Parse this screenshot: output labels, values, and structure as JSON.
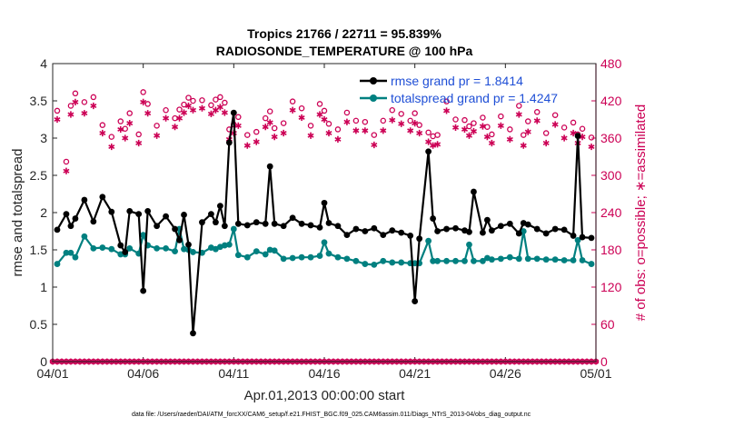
{
  "chart_data": {
    "type": "line",
    "title": "Tropics 21766 / 22711 = 95.839%",
    "subtitle": "RADIOSONDE_TEMPERATURE @ 100 hPa",
    "xlabel": "Apr.01,2013 00:00:00 start",
    "ylabel": "rmse and totalspread",
    "ylabel_right": "# of obs: o=possible; ∗=assimilated",
    "ylim": [
      0,
      4
    ],
    "ylim_right": [
      0,
      480
    ],
    "xlim": [
      0,
      30
    ],
    "yticks": [
      "0",
      "0.5",
      "1",
      "1.5",
      "2",
      "2.5",
      "3",
      "3.5",
      "4"
    ],
    "yticks_right": [
      "0",
      "60",
      "120",
      "180",
      "240",
      "300",
      "360",
      "420",
      "480"
    ],
    "xticks": [
      {
        "pos": 0,
        "label": "04/01"
      },
      {
        "pos": 5,
        "label": "04/06"
      },
      {
        "pos": 10,
        "label": "04/11"
      },
      {
        "pos": 15,
        "label": "04/16"
      },
      {
        "pos": 20,
        "label": "04/21"
      },
      {
        "pos": 25,
        "label": "04/26"
      },
      {
        "pos": 30,
        "label": "05/01"
      }
    ],
    "legend": [
      {
        "name": "rmse grand pr = 1.8414",
        "color": "#000000"
      },
      {
        "name": "totalspread grand pr = 1.4247",
        "color": "#008080"
      }
    ],
    "series": [
      {
        "name": "rmse",
        "color": "#000000",
        "x": [
          0.25,
          0.75,
          1.0,
          1.25,
          1.75,
          2.25,
          2.75,
          3.25,
          3.75,
          4.0,
          4.25,
          4.75,
          5.0,
          5.25,
          5.75,
          6.25,
          6.75,
          7.0,
          7.25,
          7.5,
          7.75,
          8.25,
          8.75,
          9.0,
          9.25,
          9.5,
          9.75,
          10.0,
          10.25,
          10.75,
          11.25,
          11.75,
          12.0,
          12.25,
          12.75,
          13.25,
          13.75,
          14.25,
          14.75,
          15.0,
          15.25,
          15.75,
          16.25,
          16.75,
          17.25,
          17.75,
          18.25,
          18.75,
          19.25,
          19.75,
          20.0,
          20.25,
          20.75,
          21.0,
          21.25,
          21.75,
          22.25,
          22.75,
          23.0,
          23.25,
          23.75,
          24.0,
          24.25,
          24.75,
          25.25,
          25.75,
          26.0,
          26.25,
          26.75,
          27.25,
          27.75,
          28.25,
          28.75,
          29.0,
          29.25,
          29.75
        ],
        "values": [
          1.77,
          1.98,
          1.82,
          1.92,
          2.17,
          1.88,
          2.21,
          2.01,
          1.56,
          1.47,
          2.02,
          1.98,
          0.95,
          2.02,
          1.82,
          1.95,
          1.78,
          1.63,
          1.97,
          1.57,
          0.38,
          1.87,
          1.98,
          1.87,
          2.09,
          1.82,
          2.94,
          3.34,
          1.85,
          1.83,
          1.87,
          1.85,
          2.62,
          1.85,
          1.82,
          1.93,
          1.85,
          1.83,
          1.8,
          2.13,
          1.86,
          1.82,
          1.7,
          1.78,
          1.75,
          1.79,
          1.7,
          1.76,
          1.73,
          1.69,
          0.81,
          1.65,
          2.82,
          1.92,
          1.75,
          1.78,
          1.79,
          1.76,
          1.74,
          2.28,
          1.73,
          1.9,
          1.76,
          1.82,
          1.85,
          1.72,
          1.86,
          1.84,
          1.78,
          1.72,
          1.78,
          1.77,
          1.69,
          3.03,
          1.67,
          1.66
        ]
      },
      {
        "name": "totalspread",
        "color": "#008080",
        "x": [
          0.25,
          0.75,
          1.0,
          1.25,
          1.75,
          2.25,
          2.75,
          3.25,
          3.75,
          4.0,
          4.25,
          4.75,
          5.0,
          5.25,
          5.75,
          6.25,
          6.75,
          7.0,
          7.25,
          7.5,
          7.75,
          8.25,
          8.75,
          9.0,
          9.25,
          9.5,
          9.75,
          10.0,
          10.25,
          10.75,
          11.25,
          11.75,
          12.0,
          12.25,
          12.75,
          13.25,
          13.75,
          14.25,
          14.75,
          15.0,
          15.25,
          15.75,
          16.25,
          16.75,
          17.25,
          17.75,
          18.25,
          18.75,
          19.25,
          19.75,
          20.0,
          20.25,
          20.75,
          21.0,
          21.25,
          21.75,
          22.25,
          22.75,
          23.0,
          23.25,
          23.75,
          24.0,
          24.25,
          24.75,
          25.25,
          25.75,
          26.0,
          26.25,
          26.75,
          27.25,
          27.75,
          28.25,
          28.75,
          29.0,
          29.25,
          29.75
        ],
        "values": [
          1.31,
          1.46,
          1.46,
          1.4,
          1.68,
          1.52,
          1.53,
          1.51,
          1.44,
          1.44,
          1.52,
          1.45,
          1.7,
          1.56,
          1.52,
          1.52,
          1.48,
          1.78,
          1.51,
          1.5,
          1.47,
          1.46,
          1.53,
          1.51,
          1.54,
          1.56,
          1.57,
          1.78,
          1.43,
          1.4,
          1.48,
          1.44,
          1.5,
          1.49,
          1.38,
          1.39,
          1.4,
          1.4,
          1.42,
          1.6,
          1.45,
          1.4,
          1.38,
          1.35,
          1.31,
          1.3,
          1.35,
          1.33,
          1.33,
          1.32,
          1.32,
          1.32,
          1.62,
          1.35,
          1.35,
          1.35,
          1.35,
          1.35,
          1.57,
          1.35,
          1.35,
          1.39,
          1.37,
          1.38,
          1.4,
          1.38,
          1.75,
          1.38,
          1.38,
          1.37,
          1.37,
          1.36,
          1.36,
          1.63,
          1.36,
          1.31
        ]
      }
    ],
    "obs_possible": {
      "x": [
        0.25,
        0.75,
        1.0,
        1.25,
        1.75,
        2.25,
        2.75,
        3.25,
        3.75,
        4.0,
        4.25,
        4.75,
        5.0,
        5.25,
        5.75,
        6.25,
        6.75,
        7.0,
        7.25,
        7.5,
        7.75,
        8.25,
        8.75,
        9.0,
        9.25,
        9.5,
        9.75,
        10.0,
        10.25,
        10.75,
        11.25,
        11.75,
        12.0,
        12.25,
        12.75,
        13.25,
        13.75,
        14.25,
        14.75,
        15.0,
        15.25,
        15.75,
        16.25,
        16.75,
        17.25,
        17.75,
        18.25,
        18.75,
        19.25,
        19.75,
        20.0,
        20.25,
        20.75,
        21.0,
        21.25,
        21.75,
        22.25,
        22.75,
        23.0,
        23.25,
        23.75,
        24.0,
        24.25,
        24.75,
        25.25,
        25.75,
        26.0,
        26.25,
        26.75,
        27.25,
        27.75,
        28.25,
        28.75,
        29.0,
        29.25,
        29.75
      ],
      "values": [
        404,
        322,
        412,
        432,
        418,
        426,
        381,
        362,
        387,
        375,
        400,
        366,
        434,
        415,
        380,
        405,
        392,
        406,
        414,
        425,
        420,
        421,
        413,
        422,
        426,
        417,
        374,
        382,
        394,
        365,
        370,
        392,
        403,
        376,
        384,
        419,
        408,
        380,
        415,
        404,
        383,
        374,
        401,
        388,
        386,
        365,
        388,
        405,
        399,
        388,
        400,
        381,
        369,
        363,
        365,
        419,
        390,
        389,
        379,
        384,
        393,
        378,
        366,
        395,
        374,
        412,
        365,
        387,
        402,
        368,
        397,
        377,
        385,
        366,
        375,
        361
      ]
    },
    "obs_assimilated": {
      "x": [
        0.25,
        0.75,
        1.0,
        1.25,
        1.75,
        2.25,
        2.75,
        3.25,
        3.75,
        4.0,
        4.25,
        4.75,
        5.0,
        5.25,
        5.75,
        6.25,
        6.75,
        7.0,
        7.25,
        7.5,
        7.75,
        8.25,
        8.75,
        9.0,
        9.25,
        9.5,
        9.75,
        10.0,
        10.25,
        10.75,
        11.25,
        11.75,
        12.0,
        12.25,
        12.75,
        13.25,
        13.75,
        14.25,
        14.75,
        15.0,
        15.25,
        15.75,
        16.25,
        16.75,
        17.25,
        17.75,
        18.25,
        18.75,
        19.25,
        19.75,
        20.0,
        20.25,
        20.75,
        21.0,
        21.25,
        21.75,
        22.25,
        22.75,
        23.0,
        23.25,
        23.75,
        24.0,
        24.25,
        24.75,
        25.25,
        25.75,
        26.0,
        26.25,
        26.75,
        27.25,
        27.75,
        28.25,
        28.75,
        29.0,
        29.25,
        29.75
      ],
      "values": [
        390,
        307,
        398,
        418,
        400,
        412,
        368,
        346,
        374,
        360,
        384,
        352,
        418,
        400,
        364,
        392,
        378,
        392,
        401,
        412,
        405,
        408,
        399,
        405,
        410,
        401,
        358,
        368,
        380,
        348,
        354,
        378,
        385,
        362,
        368,
        405,
        393,
        364,
        398,
        390,
        368,
        358,
        386,
        372,
        372,
        349,
        372,
        389,
        383,
        372,
        384,
        368,
        354,
        348,
        350,
        404,
        377,
        374,
        364,
        371,
        379,
        362,
        352,
        380,
        358,
        398,
        348,
        370,
        388,
        352,
        382,
        360,
        368,
        352,
        362,
        346
      ]
    },
    "obs_zero_x": [
      0,
      0.25,
      0.5,
      0.75,
      1.0,
      1.25,
      1.5,
      1.75,
      2.0,
      2.25,
      2.5,
      2.75,
      3.0,
      3.25,
      3.5,
      3.75,
      4.0,
      4.25,
      4.5,
      4.75,
      5.0,
      5.25,
      5.5,
      5.75,
      6.0,
      6.25,
      6.5,
      6.75,
      7.0,
      7.25,
      7.5,
      7.75,
      8.0,
      8.25,
      8.5,
      8.75,
      9.0,
      9.25,
      9.5,
      9.75,
      10.0,
      10.25,
      10.5,
      10.75,
      11.0,
      11.25,
      11.5,
      11.75,
      12.0,
      12.25,
      12.5,
      12.75,
      13.0,
      13.25,
      13.5,
      13.75,
      14.0,
      14.25,
      14.5,
      14.75,
      15.0,
      15.25,
      15.5,
      15.75,
      16.0,
      16.25,
      16.5,
      16.75,
      17.0,
      17.25,
      17.5,
      17.75,
      18.0,
      18.25,
      18.5,
      18.75,
      19.0,
      19.25,
      19.5,
      19.75,
      20.0,
      20.25,
      20.5,
      20.75,
      21.0,
      21.25,
      21.5,
      21.75,
      22.0,
      22.25,
      22.5,
      22.75,
      23.0,
      23.25,
      23.5,
      23.75,
      24.0,
      24.25,
      24.5,
      24.75,
      25.0,
      25.25,
      25.5,
      25.75,
      26.0,
      26.25,
      26.5,
      26.75,
      27.0,
      27.25,
      27.5,
      27.75,
      28.0,
      28.25,
      28.5,
      28.75,
      29.0,
      29.25,
      29.5,
      29.75,
      30.0
    ],
    "footnote": "data file: /Users/raeder/DAI/ATM_forcXX/CAM6_setup/f.e21.FHIST_BGC.f09_025.CAM6assim.011/Diags_NTrS_2013-04/obs_diag_output.nc"
  }
}
